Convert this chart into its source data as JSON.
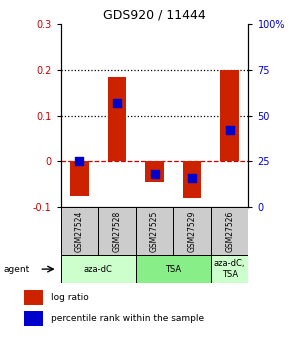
{
  "title": "GDS920 / 11444",
  "samples": [
    "GSM27524",
    "GSM27528",
    "GSM27525",
    "GSM27529",
    "GSM27526"
  ],
  "log_ratios": [
    -0.075,
    0.185,
    -0.045,
    -0.08,
    0.2
  ],
  "percentile_ranks": [
    25,
    57,
    18,
    16,
    42
  ],
  "agents": [
    {
      "label": "aza-dC",
      "span": [
        0,
        2
      ],
      "color": "#ccffcc"
    },
    {
      "label": "TSA",
      "span": [
        2,
        4
      ],
      "color": "#88ee88"
    },
    {
      "label": "aza-dC,\nTSA",
      "span": [
        4,
        5
      ],
      "color": "#ccffcc"
    }
  ],
  "ylim_left": [
    -0.1,
    0.3
  ],
  "ylim_right": [
    0,
    100
  ],
  "yticks_left": [
    -0.1,
    0.0,
    0.1,
    0.2,
    0.3
  ],
  "ytick_labels_left": [
    "-0.1",
    "0",
    "0.1",
    "0.2",
    "0.3"
  ],
  "yticks_right": [
    0,
    25,
    50,
    75,
    100
  ],
  "ytick_labels_right": [
    "0",
    "25",
    "50",
    "75",
    "100%"
  ],
  "hlines": [
    0.0,
    0.1,
    0.2
  ],
  "hline_styles": [
    "--",
    ":",
    ":"
  ],
  "hline_colors": [
    "#cc0000",
    "#000000",
    "#000000"
  ],
  "bar_color": "#cc2200",
  "dot_color": "#0000cc",
  "bar_width": 0.5,
  "dot_size": 28,
  "legend_red_label": "log ratio",
  "legend_blue_label": "percentile rank within the sample",
  "sample_bg_color": "#cccccc",
  "fig_width": 3.03,
  "fig_height": 3.45,
  "fig_dpi": 100
}
